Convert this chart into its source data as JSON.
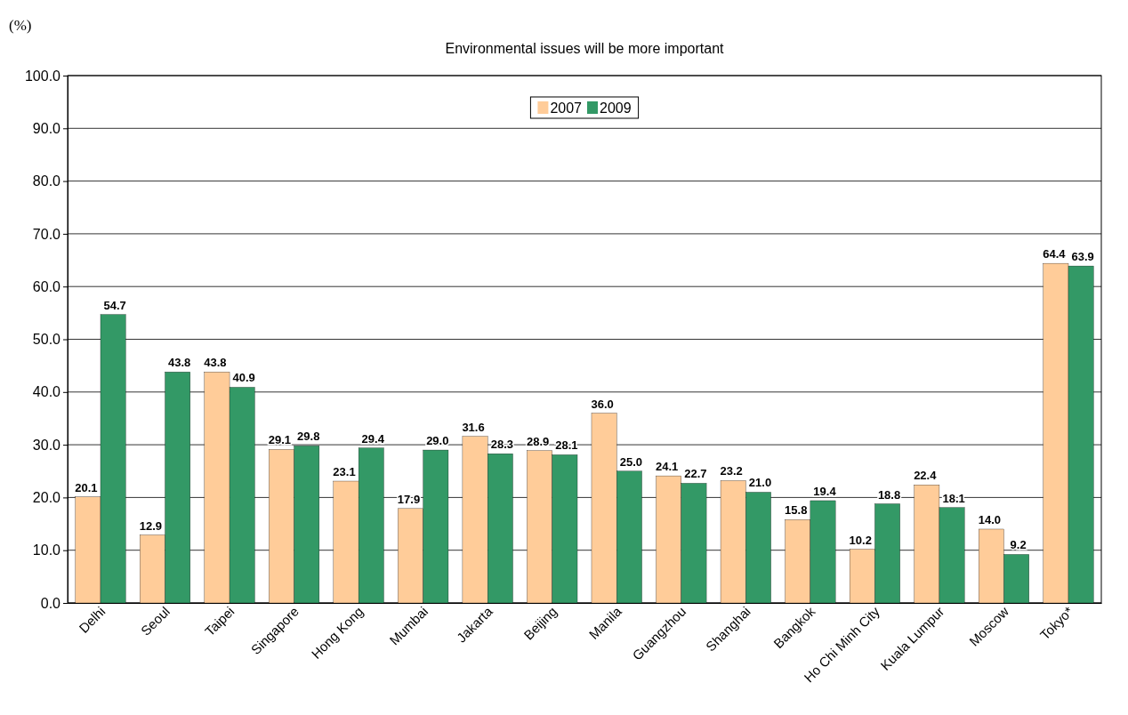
{
  "chart_data": {
    "type": "bar",
    "title": "Environmental issues will be more important",
    "ylabel": "(%)",
    "categories": [
      "Delhi",
      "Seoul",
      "Taipei",
      "Singapore",
      "Hong Kong",
      "Mumbai",
      "Jakarta",
      "Beijing",
      "Manila",
      "Guangzhou",
      "Shanghai",
      "Bangkok",
      "Ho Chi Minh City",
      "Kuala Lumpur",
      "Moscow",
      "Tokyo*"
    ],
    "series": [
      {
        "name": "2007",
        "color": "#ffcc99",
        "values": [
          20.1,
          12.9,
          43.8,
          29.1,
          23.1,
          17.9,
          31.6,
          28.9,
          36.0,
          24.1,
          23.2,
          15.8,
          10.2,
          22.4,
          14.0,
          64.4
        ],
        "value_labels": [
          "20.1",
          "12.9",
          "43.8",
          "29.1",
          "23.1",
          "17.9",
          "31.6",
          "28.9",
          "36.0",
          "24.1",
          "23.2",
          "15.8",
          "10.2",
          "22.4",
          "14.0",
          "64.4"
        ]
      },
      {
        "name": "2009",
        "color": "#339966",
        "values": [
          54.7,
          43.8,
          40.9,
          29.8,
          29.4,
          29.0,
          28.3,
          28.1,
          25.0,
          22.7,
          21.0,
          19.4,
          18.8,
          18.1,
          9.2,
          63.9
        ],
        "value_labels": [
          "54.7",
          "43.8",
          "40.9",
          "29.8",
          "29.4",
          "29.0",
          "28.3",
          "28.1",
          "25.0",
          "22.7",
          "21.0",
          "19.4",
          "18.8",
          "18.1",
          "9.2",
          "63.9"
        ]
      }
    ],
    "ylim": [
      0,
      100
    ],
    "yticks": [
      {
        "value": 0,
        "label": "0.0"
      },
      {
        "value": 10,
        "label": "10.0"
      },
      {
        "value": 20,
        "label": "20.0"
      },
      {
        "value": 30,
        "label": "30.0"
      },
      {
        "value": 40,
        "label": "40.0"
      },
      {
        "value": 50,
        "label": "50.0"
      },
      {
        "value": 60,
        "label": "60.0"
      },
      {
        "value": 70,
        "label": "70.0"
      },
      {
        "value": 80,
        "label": "80.0"
      },
      {
        "value": 90,
        "label": "90.0"
      },
      {
        "value": 100,
        "label": "100.0"
      }
    ],
    "grid": "y",
    "legend": "top"
  }
}
